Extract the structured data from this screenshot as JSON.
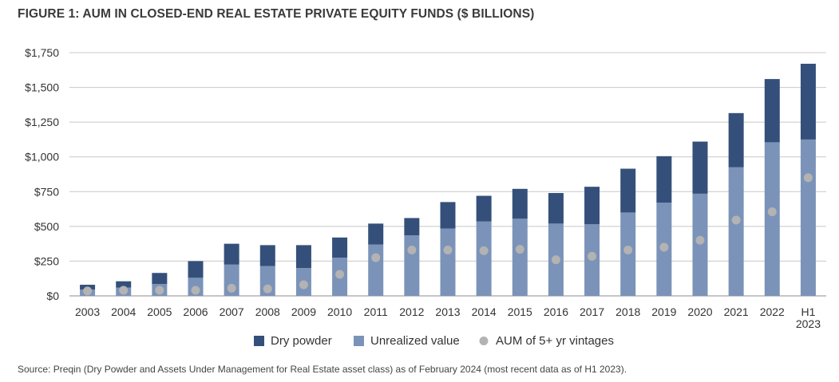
{
  "chart_data": {
    "type": "bar",
    "title": "FIGURE 1: AUM IN CLOSED-END REAL ESTATE PRIVATE EQUITY FUNDS ($ BILLIONS)",
    "xlabel": "",
    "ylabel": "",
    "ylim": [
      0,
      1750
    ],
    "yticks": [
      0,
      250,
      500,
      750,
      1000,
      1250,
      1500,
      1750
    ],
    "ytick_labels": [
      "$0",
      "$250",
      "$500",
      "$750",
      "$1,000",
      "$1,250",
      "$1,500",
      "$1,750"
    ],
    "categories": [
      "2003",
      "2004",
      "2005",
      "2006",
      "2007",
      "2008",
      "2009",
      "2010",
      "2011",
      "2012",
      "2013",
      "2014",
      "2015",
      "2016",
      "2017",
      "2018",
      "2019",
      "2020",
      "2021",
      "2022",
      "H1 2023"
    ],
    "series": [
      {
        "name": "Unrealized value",
        "stacked": true,
        "color": "#7b93b8",
        "values": [
          45,
          60,
          85,
          130,
          225,
          215,
          200,
          275,
          370,
          435,
          485,
          535,
          555,
          520,
          515,
          600,
          670,
          735,
          925,
          1105,
          1125
        ]
      },
      {
        "name": "Dry powder",
        "stacked": true,
        "color": "#34507a",
        "values": [
          35,
          45,
          80,
          120,
          150,
          150,
          165,
          145,
          150,
          125,
          190,
          185,
          215,
          220,
          270,
          315,
          335,
          375,
          390,
          455,
          545
        ]
      },
      {
        "name": "AUM of 5+ yr vintages",
        "marker": "dot",
        "color": "#b3b3b3",
        "values": [
          35,
          40,
          40,
          40,
          55,
          50,
          80,
          155,
          275,
          330,
          330,
          325,
          335,
          260,
          285,
          330,
          350,
          400,
          545,
          605,
          850
        ]
      }
    ],
    "legend": {
      "position": "bottom",
      "entries": [
        "Dry powder",
        "Unrealized value",
        "AUM of 5+ yr vintages"
      ]
    }
  },
  "source_text": "Source: Preqin (Dry Powder and Assets Under Management for Real Estate asset class) as of February 2024 (most recent data as of H1 2023)."
}
